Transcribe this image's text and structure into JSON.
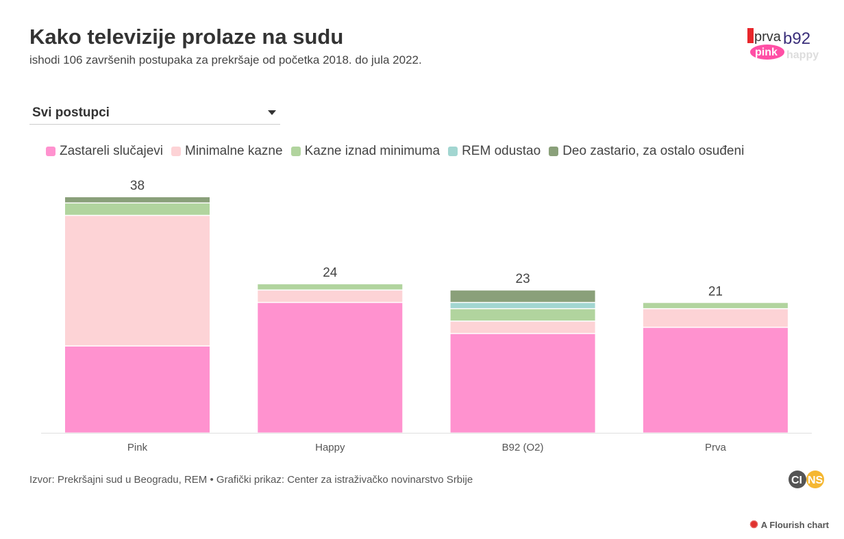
{
  "header": {
    "title": "Kako televizije prolaze na sudu",
    "subtitle": "ishodi 106 završenih postupaka za prekršaje od početka 2018. do jula 2022.",
    "logo_text": "1prva b92 pink happy"
  },
  "filter": {
    "selected": "Svi postupci"
  },
  "chart_data": {
    "type": "bar",
    "stacked": true,
    "categories": [
      "Pink",
      "Happy",
      "B92 (O2)",
      "Prva"
    ],
    "totals": [
      38,
      24,
      23,
      21
    ],
    "series": [
      {
        "name": "Zastareli slučajevi",
        "color": "#ff92cf",
        "values": [
          14,
          21,
          16,
          17
        ]
      },
      {
        "name": "Minimalne kazne",
        "color": "#fdd3d6",
        "values": [
          21,
          2,
          2,
          3
        ]
      },
      {
        "name": "Kazne iznad minimuma",
        "color": "#b1d49e",
        "values": [
          2,
          1,
          2,
          1
        ]
      },
      {
        "name": "REM odustao",
        "color": "#a2d6d1",
        "values": [
          0,
          0,
          1,
          0
        ]
      },
      {
        "name": "Deo zastario, za ostalo osuđeni",
        "color": "#8aa07a",
        "values": [
          1,
          0,
          2,
          0
        ]
      }
    ],
    "ylim": [
      0,
      38
    ],
    "legend_position": "top",
    "grid": false
  },
  "footer": {
    "source": "Izvor: Prekršajni sud u Beogradu, REM • Grafički prikaz: Center za istraživačko novinarstvo Srbije",
    "cins_logo": "CINS",
    "flourish": "A Flourish chart"
  }
}
